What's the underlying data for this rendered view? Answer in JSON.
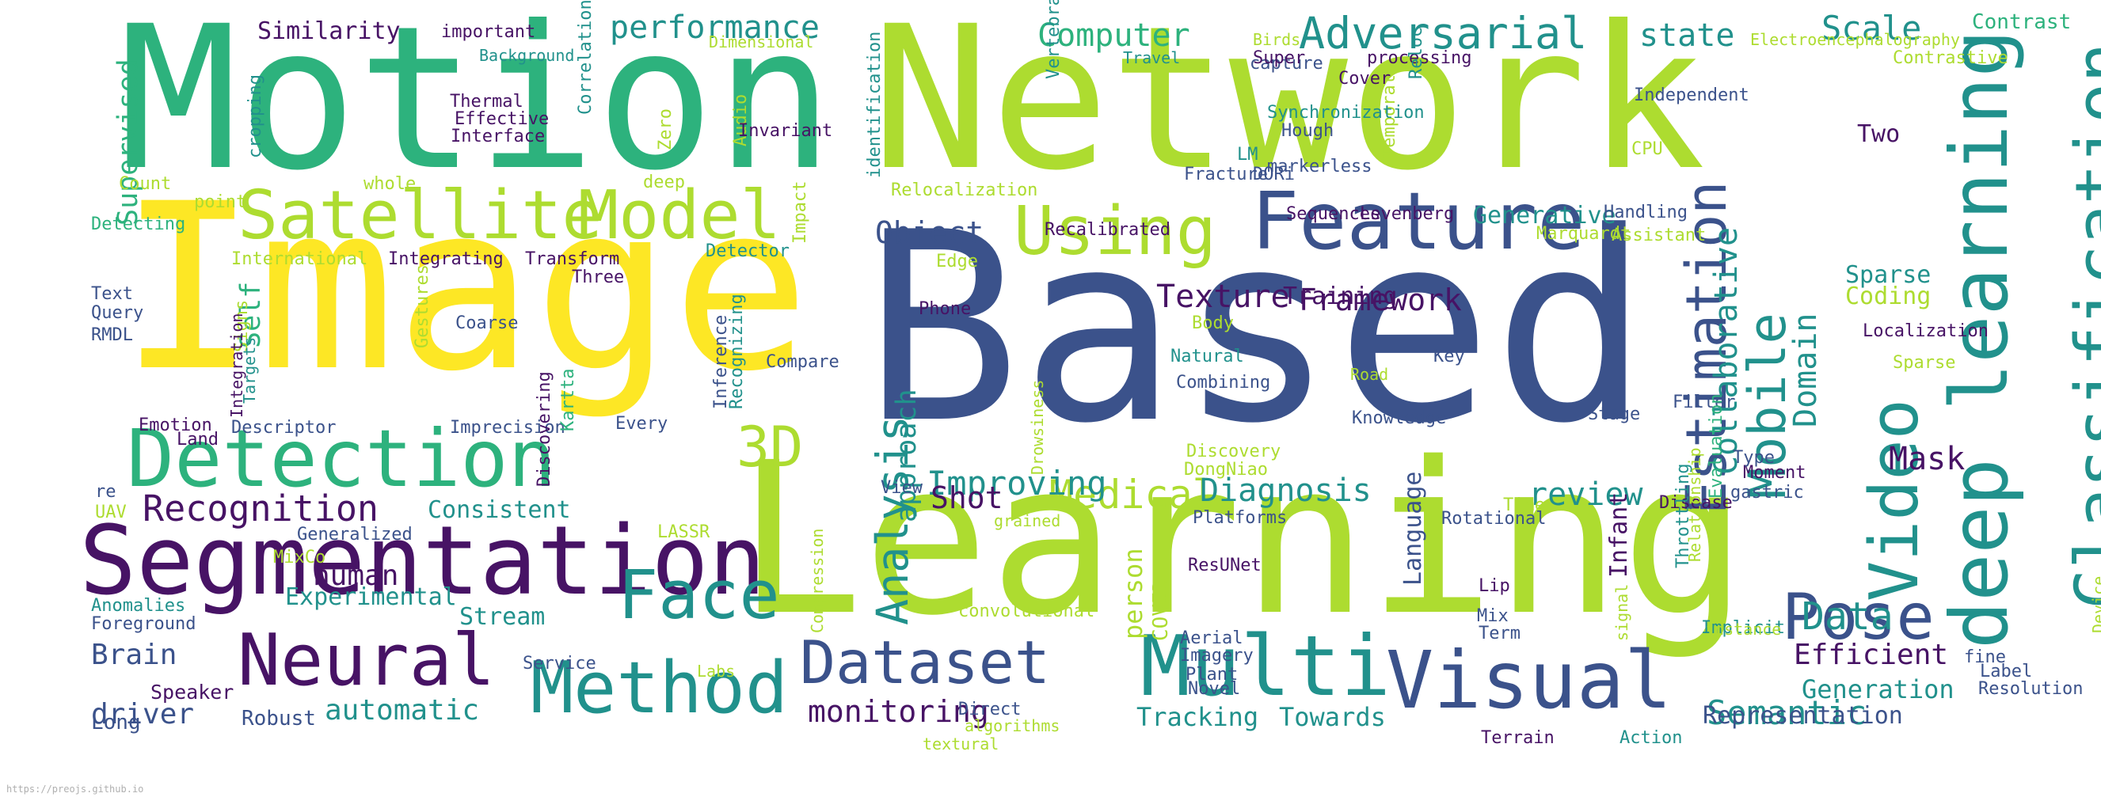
{
  "cloud": {
    "colors": {
      "purple": "#471365",
      "darkblue": "#3b528b",
      "teal": "#21918c",
      "green": "#2db27d",
      "lime": "#addc30",
      "yellow": "#fde725",
      "background": "#ffffff"
    },
    "words": [
      "Motion",
      "Network",
      "Image",
      "Based",
      "Learning",
      "Segmentation",
      "Satellite",
      "Model",
      "Feature",
      "Using",
      "Detection",
      "Neural",
      "Method",
      "Dataset",
      "Multi",
      "Visual",
      "Face",
      "3D",
      "Estimation",
      "Mobile",
      "deep learning",
      "Classification",
      "Video",
      "Pose",
      "Adversarial",
      "performance",
      "Computer",
      "Similarity",
      "Recognition",
      "Medical",
      "Diagnosis",
      "review",
      "Texture",
      "Framework",
      "Object",
      "Improving",
      "Analysis",
      "Collaborative",
      "Domain",
      "Data",
      "Efficient",
      "Generation",
      "Semantic",
      "Representation",
      "Mask",
      "Scale",
      "state",
      "Contrast",
      "human",
      "Brain",
      "driver",
      "automatic",
      "monitoring",
      "Tracking",
      "Towards",
      "Shot",
      "Supervised",
      "Self",
      "Experimental",
      "Consistent",
      "Stream",
      "Language",
      "Infant",
      "Generative",
      "Sparse",
      "Coding",
      "Two",
      "Training",
      "Robust",
      "Long",
      "Speaker",
      "Foreground",
      "Anomalies",
      "Generalized",
      "Emotion",
      "Land",
      "Descriptor",
      "Imprecision",
      "Every",
      "approach",
      "Knowledge",
      "Stage",
      "Key",
      "Combining",
      "Compare",
      "Phone",
      "Recalibrated",
      "Sequences",
      "Levenberg",
      "Marquardt",
      "Handling",
      "Assistant",
      "Filter",
      "Moment",
      "Type",
      "Disease",
      "gastric",
      "Implicit",
      "Evaluation",
      "Device",
      "instance",
      "fine",
      "Label",
      "Resolution",
      "Terrain",
      "Action",
      "textural",
      "algorithms",
      "Direct",
      "Novel",
      "Plant",
      "Aerial",
      "Imagery",
      "ResUNet",
      "Lip",
      "Mix",
      "Term",
      "Time",
      "Rotational",
      "Platforms",
      "View",
      "LASSR",
      "UAV",
      "re",
      "MixCo",
      "Labs",
      "Service",
      "convolutional",
      "grained",
      "person",
      "COVID",
      "Drowsiness",
      "Discovery",
      "DongNiao",
      "Body",
      "Natural",
      "Road",
      "signal",
      "Throttling",
      "Relationship",
      "Compression",
      "important",
      "Background",
      "Dimensional",
      "Thermal",
      "Effective",
      "Interface",
      "cropping",
      "Correlation",
      "Audio",
      "Invariant",
      "Zero",
      "deep",
      "point",
      "whole",
      "Count",
      "Detecting",
      "Text",
      "Query",
      "RMDL",
      "International",
      "Integrating",
      "Transform",
      "Three",
      "Coarse",
      "Gestures",
      "Signs",
      "Targets",
      "Integration",
      "Discovering",
      "Kartta",
      "Inference",
      "Recognizing",
      "Detector",
      "Impact",
      "Edge",
      "Relocalization",
      "identification",
      "Vertebral",
      "Travel",
      "DORi",
      "Fracture",
      "capture",
      "Temporal",
      "LM",
      "Synchronization",
      "Hough",
      "Super",
      "Cover",
      "processing",
      "Reloc",
      "markerless",
      "Independent",
      "Birds",
      "CPU",
      "Contrastive",
      "Electroencephalography",
      "Localization",
      "Sparse"
    ]
  },
  "footer": {
    "url": "https://preojs.github.io"
  }
}
